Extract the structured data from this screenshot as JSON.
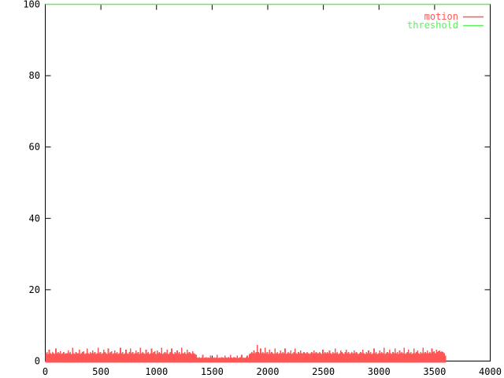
{
  "window": {
    "background": "#ffffff",
    "axis_color": "#000000",
    "text_color": "#000000"
  },
  "chart_data": {
    "type": "line",
    "title": "",
    "xlabel": "",
    "ylabel": "",
    "xlim": [
      0,
      4000
    ],
    "ylim": [
      0,
      100
    ],
    "x_ticks": [
      0,
      500,
      1000,
      1500,
      2000,
      2500,
      3000,
      3500,
      4000
    ],
    "y_ticks": [
      0,
      20,
      40,
      60,
      80,
      100
    ],
    "grid": false,
    "legend": {
      "position": "top-right-inside",
      "entries": [
        {
          "label": "motion",
          "color": "#ff5555"
        },
        {
          "label": "threshold",
          "color": "#5cf05c"
        }
      ]
    },
    "series": [
      {
        "name": "motion",
        "color": "#ff5555",
        "style": "dense-spiky-fill",
        "x_start": 0,
        "x_step": 10,
        "values": [
          2.2,
          2.5,
          2.0,
          3.2,
          2.2,
          2.0,
          2.5,
          2.2,
          2.0,
          3.5,
          2.2,
          2.5,
          2.2,
          2.8,
          2.0,
          2.2,
          2.5,
          2.0,
          2.2,
          2.2,
          3.0,
          2.2,
          2.5,
          2.0,
          3.8,
          2.2,
          2.0,
          2.5,
          2.2,
          2.2,
          3.2,
          2.0,
          2.2,
          2.5,
          2.8,
          2.0,
          2.2,
          3.5,
          2.2,
          2.0,
          2.5,
          2.2,
          3.0,
          2.2,
          2.5,
          2.0,
          2.2,
          3.8,
          2.2,
          2.5,
          2.0,
          2.2,
          3.2,
          2.5,
          2.2,
          2.0,
          3.5,
          2.2,
          2.5,
          2.8,
          2.0,
          2.2,
          3.0,
          2.2,
          2.5,
          2.0,
          2.2,
          3.8,
          2.2,
          2.5,
          2.0,
          2.2,
          3.2,
          2.2,
          2.0,
          2.5,
          3.5,
          2.2,
          2.5,
          2.0,
          2.2,
          3.0,
          2.2,
          2.5,
          2.0,
          3.8,
          2.2,
          2.5,
          2.2,
          2.0,
          3.2,
          2.2,
          2.5,
          2.0,
          2.2,
          3.5,
          2.2,
          2.5,
          2.8,
          2.0,
          3.0,
          2.2,
          2.5,
          2.2,
          3.8,
          2.0,
          2.2,
          2.5,
          2.2,
          3.2,
          2.0,
          2.2,
          2.5,
          3.5,
          2.2,
          2.0,
          2.5,
          2.2,
          3.0,
          2.2,
          2.5,
          2.0,
          3.8,
          2.2,
          2.2,
          2.5,
          2.0,
          3.2,
          2.2,
          2.5,
          2.2,
          2.0,
          2.8,
          2.2,
          2.0,
          1.8,
          1.0,
          0.9,
          1.1,
          0.9,
          1.0,
          1.8,
          0.9,
          1.0,
          1.1,
          0.9,
          1.0,
          0.9,
          1.5,
          1.0,
          0.9,
          1.1,
          0.9,
          1.0,
          1.8,
          0.9,
          1.0,
          0.9,
          1.1,
          1.0,
          0.9,
          1.5,
          1.0,
          0.9,
          1.1,
          0.9,
          1.8,
          1.0,
          0.9,
          1.1,
          1.0,
          0.9,
          1.5,
          0.9,
          1.0,
          1.1,
          1.8,
          0.9,
          1.0,
          0.9,
          1.1,
          1.5,
          1.0,
          2.0,
          2.2,
          2.5,
          2.2,
          3.0,
          2.2,
          2.5,
          4.5,
          2.5,
          2.2,
          3.5,
          2.2,
          2.5,
          2.2,
          3.8,
          2.2,
          2.5,
          2.0,
          3.2,
          2.2,
          2.5,
          2.2,
          2.0,
          3.5,
          2.2,
          2.5,
          2.0,
          2.2,
          3.0,
          2.2,
          2.5,
          2.2,
          3.5,
          2.0,
          2.2,
          2.5,
          2.2,
          3.0,
          2.0,
          2.2,
          2.5,
          3.5,
          2.2,
          2.0,
          2.5,
          2.2,
          3.0,
          2.2,
          2.2,
          2.5,
          2.2,
          2.2,
          2.5,
          2.2,
          2.0,
          2.2,
          2.5,
          2.2,
          3.0,
          2.2,
          2.5,
          2.2,
          2.2,
          2.5,
          2.2,
          2.0,
          3.2,
          2.2,
          2.5,
          2.2,
          2.5,
          2.2,
          3.0,
          2.2,
          2.0,
          2.5,
          2.2,
          3.5,
          2.2,
          2.5,
          2.0,
          2.2,
          3.0,
          2.5,
          2.2,
          2.0,
          2.5,
          3.2,
          2.2,
          2.5,
          2.0,
          2.2,
          2.5,
          2.2,
          3.0,
          2.2,
          2.5,
          2.2,
          2.0,
          2.2,
          2.5,
          2.2,
          3.2,
          2.2,
          2.0,
          2.5,
          2.2,
          3.0,
          2.2,
          2.5,
          2.0,
          2.2,
          3.5,
          2.2,
          2.5,
          2.0,
          2.2,
          3.0,
          2.2,
          2.5,
          2.2,
          3.8,
          2.0,
          2.2,
          2.5,
          2.2,
          3.2,
          2.2,
          2.0,
          2.5,
          2.2,
          3.5,
          2.2,
          2.5,
          2.0,
          3.0,
          2.2,
          2.5,
          2.2,
          3.8,
          2.0,
          2.2,
          2.5,
          3.2,
          2.2,
          2.5,
          2.0,
          2.2,
          3.5,
          2.2,
          2.5,
          3.0,
          2.2,
          2.0,
          2.5,
          2.2,
          3.8,
          2.2,
          2.5,
          2.2,
          3.0,
          2.2,
          2.5,
          2.2,
          3.5,
          2.5,
          2.8,
          2.2,
          3.2,
          2.5,
          2.8,
          3.0,
          2.5,
          2.8,
          2.5,
          2.2,
          1.5
        ]
      },
      {
        "name": "threshold",
        "color": "#5cf05c",
        "style": "line",
        "points": [
          [
            0,
            100
          ],
          [
            4000,
            100
          ]
        ]
      }
    ]
  }
}
